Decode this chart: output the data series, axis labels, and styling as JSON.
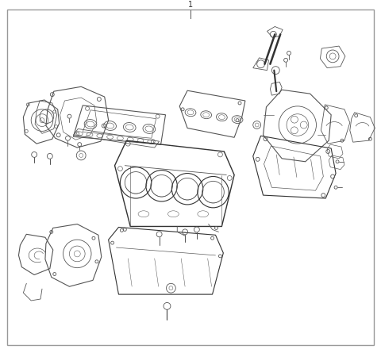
{
  "bg_color": "#ffffff",
  "border_color": "#999999",
  "line_color": "#555555",
  "dark_line": "#333333",
  "figsize": [
    4.8,
    4.4
  ],
  "dpi": 100,
  "label": "1",
  "border": [
    5,
    5,
    470,
    430
  ]
}
